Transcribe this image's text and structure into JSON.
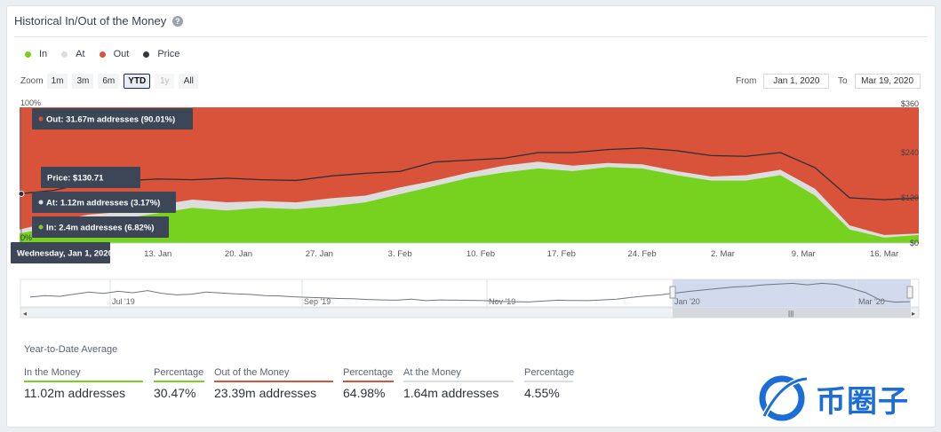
{
  "header": {
    "title": "Historical In/Out of the Money",
    "help_icon": "?"
  },
  "legend": [
    {
      "label": "In",
      "color": "#76d21e"
    },
    {
      "label": "At",
      "color": "#dddddd"
    },
    {
      "label": "Out",
      "color": "#d9523a"
    },
    {
      "label": "Price",
      "color": "#33393f"
    }
  ],
  "zoom": {
    "label": "Zoom",
    "buttons": [
      "1m",
      "3m",
      "6m",
      "YTD",
      "1y",
      "All"
    ],
    "active": "YTD"
  },
  "range": {
    "from_label": "From",
    "from_value": "Jan 1, 2020",
    "to_label": "To",
    "to_value": "Mar 19, 2020"
  },
  "chart_data": {
    "type": "area",
    "title": "Historical In/Out of the Money",
    "x": [
      "Jan 1",
      "Jan 4",
      "Jan 7",
      "Jan 10",
      "Jan 13",
      "Jan 16",
      "Jan 19",
      "Jan 22",
      "Jan 25",
      "Jan 28",
      "Jan 31",
      "Feb 3",
      "Feb 6",
      "Feb 9",
      "Feb 12",
      "Feb 15",
      "Feb 18",
      "Feb 21",
      "Feb 24",
      "Feb 27",
      "Mar 1",
      "Mar 4",
      "Mar 7",
      "Mar 10",
      "Mar 13",
      "Mar 16",
      "Mar 19"
    ],
    "series": [
      {
        "name": "In",
        "unit": "% of addresses",
        "values": [
          7,
          12,
          16,
          18,
          22,
          26,
          24,
          26,
          25,
          27,
          30,
          36,
          42,
          48,
          52,
          55,
          53,
          56,
          55,
          50,
          46,
          46,
          50,
          35,
          10,
          4,
          6
        ]
      },
      {
        "name": "At",
        "unit": "% of addresses",
        "values": [
          3,
          4,
          5,
          5,
          6,
          6,
          6,
          5,
          5,
          6,
          5,
          5,
          4,
          4,
          5,
          5,
          4,
          3,
          3,
          3,
          3,
          4,
          4,
          5,
          3,
          2,
          1
        ]
      },
      {
        "name": "Out",
        "unit": "% of addresses",
        "values": [
          90,
          84,
          79,
          77,
          72,
          68,
          70,
          69,
          70,
          67,
          65,
          59,
          54,
          48,
          43,
          40,
          43,
          41,
          42,
          47,
          51,
          50,
          46,
          60,
          87,
          94,
          93
        ]
      },
      {
        "name": "Price",
        "unit": "USD",
        "values": [
          130.71,
          140,
          160,
          165,
          170,
          168,
          172,
          168,
          166,
          178,
          185,
          190,
          215,
          220,
          225,
          240,
          240,
          248,
          252,
          245,
          232,
          230,
          240,
          200,
          120,
          115,
          120
        ]
      }
    ],
    "left_axis": {
      "labels": [
        "100%",
        "0%"
      ],
      "range": [
        0,
        100
      ]
    },
    "right_axis": {
      "labels": [
        "$360",
        "$240",
        "$120",
        "$0"
      ],
      "range": [
        0,
        360
      ]
    },
    "x_tick_labels": [
      "13. Jan",
      "20. Jan",
      "27. Jan",
      "3. Feb",
      "10. Feb",
      "17. Feb",
      "24. Feb",
      "2. Mar",
      "9. Mar",
      "16. Mar"
    ],
    "tooltip": {
      "out": "Out: 31.67m addresses (90.01%)",
      "price": "Price: $130.71",
      "at": "At: 1.12m addresses (3.17%)",
      "in": "In: 2.4m addresses (6.82%)",
      "date": "Wednesday, Jan 1, 2020"
    },
    "navigator": {
      "labels": [
        "Jul '19",
        "Sep '19",
        "Nov '19",
        "Jan '20",
        "Mar '20"
      ],
      "price": [
        150,
        160,
        155,
        170,
        185,
        175,
        190,
        180,
        195,
        175,
        165,
        170,
        185,
        178,
        172,
        168,
        160,
        158,
        152,
        148,
        145,
        140,
        138,
        133,
        130,
        128,
        135,
        125,
        130,
        128,
        127,
        125,
        120,
        118,
        116,
        122,
        128,
        126,
        125,
        130,
        135,
        148,
        158,
        165,
        178,
        190,
        200,
        210,
        220,
        225,
        235,
        240,
        245,
        235,
        245,
        238,
        210,
        180,
        128,
        115,
        118
      ]
    }
  },
  "stats": {
    "title": "Year-to-Date Average",
    "items": [
      {
        "header": "In the Money",
        "value": "11.02m addresses",
        "color": "#76d21e"
      },
      {
        "header": "Percentage",
        "value": "30.47%",
        "color": "#76d21e"
      },
      {
        "header": "Out of the Money",
        "value": "23.39m addresses",
        "color": "#d9523a"
      },
      {
        "header": "Percentage",
        "value": "64.98%",
        "color": "#d9523a"
      },
      {
        "header": "At the Money",
        "value": "1.64m addresses",
        "color": "#dddddd"
      },
      {
        "header": "Percentage",
        "value": "4.55%",
        "color": "#dddddd"
      }
    ]
  },
  "watermark": {
    "text": "币圈子"
  }
}
